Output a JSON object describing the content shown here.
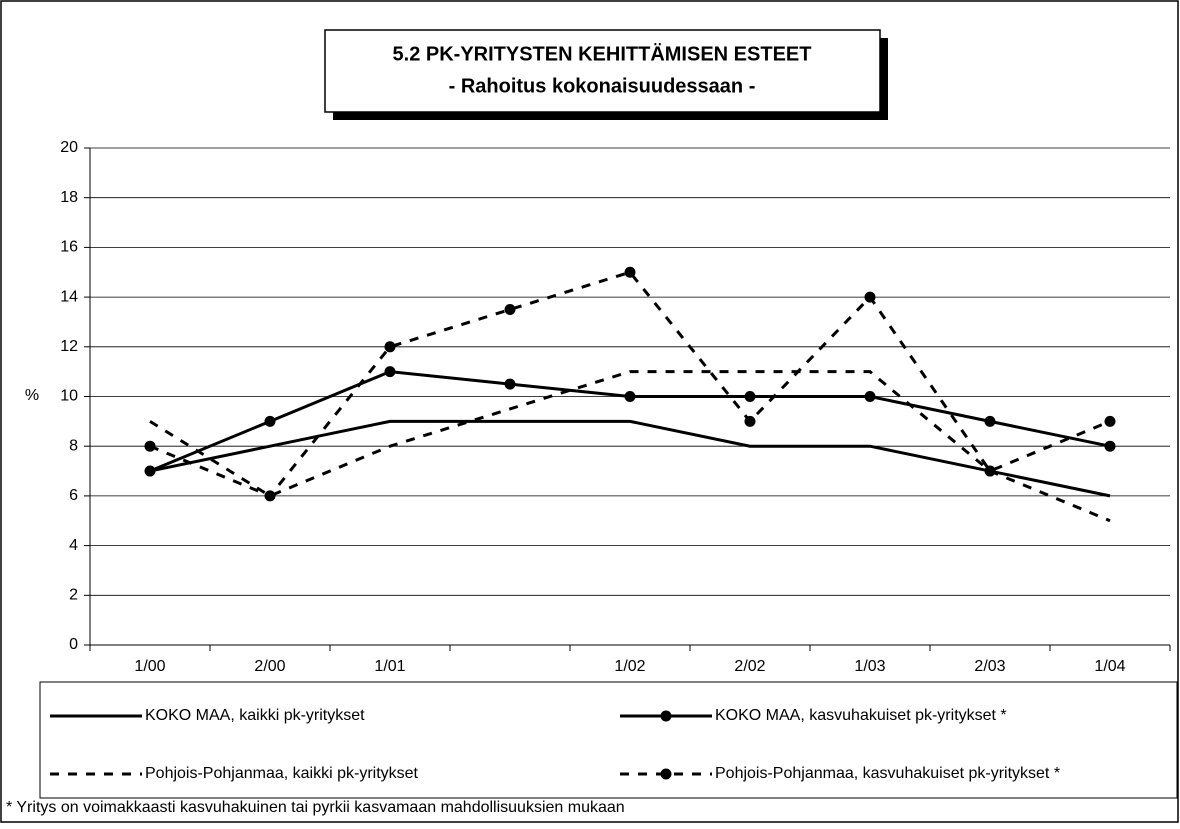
{
  "chart_data": {
    "type": "line",
    "title": "5.2 PK-YRITYSTEN KEHITTÄMISEN ESTEET",
    "subtitle": "- Rahoitus kokonaisuudessaan -",
    "ylabel": "%",
    "categories": [
      "1/00",
      "2/00",
      "1/01",
      null,
      "1/02",
      "2/02",
      "1/03",
      "2/03",
      "1/04"
    ],
    "series": [
      {
        "name": "KOKO MAA, kaikki pk-yritykset",
        "color": "#000000",
        "dashed": false,
        "markers": false,
        "values": [
          7,
          8,
          9,
          9,
          9,
          8,
          8,
          7,
          6
        ]
      },
      {
        "name": "KOKO MAA, kasvuhakuiset pk-yritykset *",
        "color": "#000000",
        "dashed": false,
        "markers": true,
        "values": [
          7,
          9,
          11,
          10.5,
          10,
          10,
          10,
          9,
          8
        ]
      },
      {
        "name": "Pohjois-Pohjanmaa, kaikki pk-yritykset",
        "color": "#000000",
        "dashed": true,
        "markers": false,
        "values": [
          9,
          6,
          8,
          9.5,
          11,
          11,
          11,
          7,
          5
        ]
      },
      {
        "name": "Pohjois-Pohjanmaa, kasvuhakuiset pk-yritykset *",
        "color": "#000000",
        "dashed": true,
        "markers": true,
        "values": [
          8,
          6,
          12,
          13.5,
          15,
          9,
          14,
          7,
          9
        ]
      }
    ],
    "ylim": [
      0,
      20
    ],
    "yticks": [
      0,
      2,
      4,
      6,
      8,
      10,
      12,
      14,
      16,
      18,
      20
    ],
    "grid": true,
    "note": "* Yritys on voimakkaasti kasvuhakuinen tai pyrkii kasvamaan mahdollisuuksien mukaan"
  }
}
